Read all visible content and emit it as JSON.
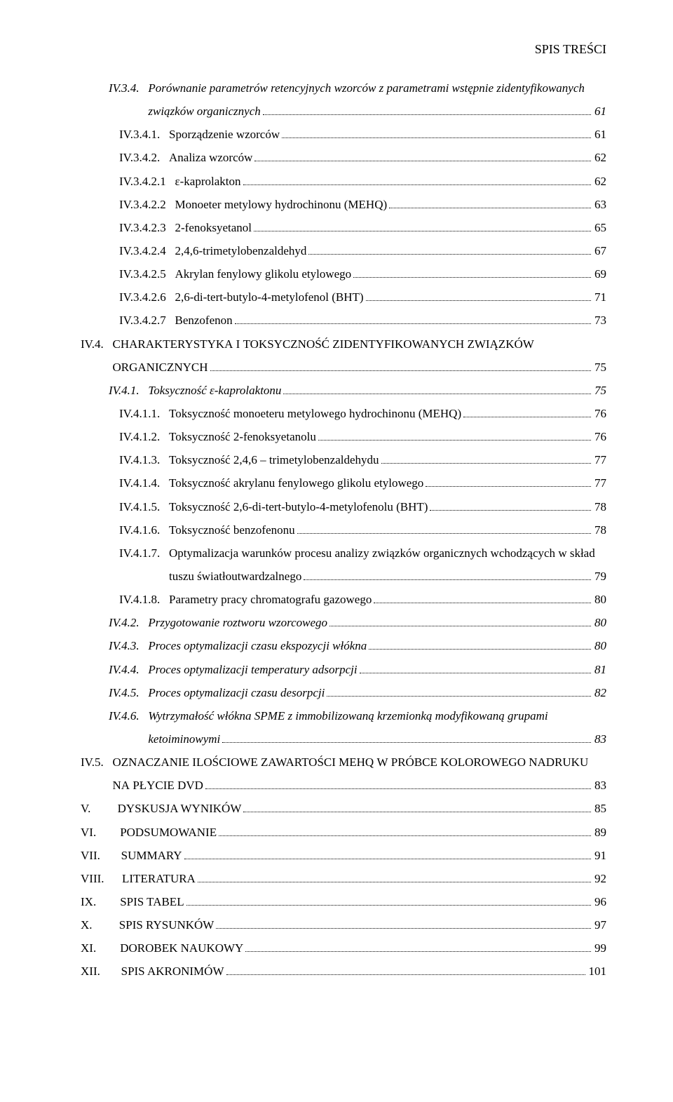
{
  "header": "SPIS TREŚCI",
  "entries": [
    {
      "num": "IV.3.4.",
      "text": "Porównanie parametrów retencyjnych wzorców z parametrami wstępnie zidentyfikowanych związków organicznych",
      "page": "61",
      "indent": "indent-1",
      "italic": true,
      "justify": true,
      "wrap": true
    },
    {
      "num": "IV.3.4.1.",
      "text": "Sporządzenie wzorców",
      "page": "61",
      "indent": "indent-3"
    },
    {
      "num": "IV.3.4.2.",
      "text": "Analiza wzorców",
      "page": "62",
      "indent": "indent-3"
    },
    {
      "num": "IV.3.4.2.1",
      "text": "ε-kaprolakton",
      "page": "62",
      "indent": "indent-4"
    },
    {
      "num": "IV.3.4.2.2",
      "text": "Monoeter metylowy hydrochinonu (MEHQ)",
      "page": "63",
      "indent": "indent-4"
    },
    {
      "num": "IV.3.4.2.3",
      "text": "2-fenoksyetanol",
      "page": "65",
      "indent": "indent-4"
    },
    {
      "num": "IV.3.4.2.4",
      "text": "2,4,6-trimetylobenzaldehyd",
      "page": "67",
      "indent": "indent-4"
    },
    {
      "num": "IV.3.4.2.5",
      "text": "Akrylan fenylowy glikolu etylowego",
      "page": "69",
      "indent": "indent-4"
    },
    {
      "num": "IV.3.4.2.6",
      "text": "2,6-di-tert-butylo-4-metylofenol (BHT)",
      "page": "71",
      "indent": "indent-4"
    },
    {
      "num": "IV.3.4.2.7",
      "text": "Benzofenon",
      "page": "73",
      "indent": "indent-4"
    },
    {
      "num": "IV.4.",
      "text": "CHARAKTERYSTYKA I TOKSYCZNOŚĆ ZIDENTYFIKOWANYCH ZWIĄZKÓW ORGANICZNYCH",
      "page": "75",
      "indent": "indent-top",
      "smallcaps": true,
      "wrap": true
    },
    {
      "num": "IV.4.1.",
      "text": "Toksyczność ε-kaprolaktonu",
      "page": "75",
      "indent": "indent-1",
      "italic": true
    },
    {
      "num": "IV.4.1.1.",
      "text": "Toksyczność monoeteru metylowego hydrochinonu (MEHQ)",
      "page": "76",
      "indent": "indent-3"
    },
    {
      "num": "IV.4.1.2.",
      "text": "Toksyczność 2-fenoksyetanolu",
      "page": "76",
      "indent": "indent-3"
    },
    {
      "num": "IV.4.1.3.",
      "text": "Toksyczność 2,4,6 – trimetylobenzaldehydu",
      "page": "77",
      "indent": "indent-3"
    },
    {
      "num": "IV.4.1.4.",
      "text": "Toksyczność akrylanu fenylowego glikolu etylowego",
      "page": "77",
      "indent": "indent-3"
    },
    {
      "num": "IV.4.1.5.",
      "text": "Toksyczność 2,6-di-tert-butylo-4-metylofenolu (BHT)",
      "page": "78",
      "indent": "indent-3"
    },
    {
      "num": "IV.4.1.6.",
      "text": "Toksyczność benzofenonu",
      "page": "78",
      "indent": "indent-3"
    },
    {
      "num": "IV.4.1.7.",
      "text": "Optymalizacja warunków procesu analizy związków organicznych wchodzących w skład tuszu światłoutwardzalnego",
      "page": "79",
      "indent": "indent-3",
      "wrap": true
    },
    {
      "num": "IV.4.1.8.",
      "text": "Parametry pracy chromatografu gazowego",
      "page": "80",
      "indent": "indent-3"
    },
    {
      "num": "IV.4.2.",
      "text": "Przygotowanie roztworu wzorcowego",
      "page": "80",
      "indent": "indent-1",
      "italic": true
    },
    {
      "num": "IV.4.3.",
      "text": "Proces optymalizacji czasu ekspozycji włókna",
      "page": "80",
      "indent": "indent-1",
      "italic": true
    },
    {
      "num": "IV.4.4.",
      "text": "Proces optymalizacji temperatury adsorpcji",
      "page": "81",
      "indent": "indent-1",
      "italic": true
    },
    {
      "num": "IV.4.5.",
      "text": "Proces optymalizacji czasu desorpcji",
      "page": "82",
      "indent": "indent-1",
      "italic": true
    },
    {
      "num": "IV.4.6.",
      "text": "Wytrzymałość włókna SPME z immobilizowaną krzemionką modyfikowaną grupami ketoiminowymi",
      "page": "83",
      "indent": "indent-1",
      "italic": true,
      "wrap": true,
      "justify": true
    },
    {
      "num": "IV.5.",
      "text": "OZNACZANIE ILOŚCIOWE ZAWARTOŚCI MEHQ W PRÓBCE KOLOROWEGO NADRUKU NA PŁYCIE DVD",
      "page": "83",
      "indent": "indent-top",
      "smallcaps": true,
      "wrap": true,
      "justify": true
    },
    {
      "num": "V.",
      "text": "DYSKUSJA WYNIKÓW",
      "page": "85",
      "indent": "indent-top",
      "numpad": true
    },
    {
      "num": "VI.",
      "text": "PODSUMOWANIE",
      "page": "89",
      "indent": "indent-top",
      "numpad": true
    },
    {
      "num": "VII.",
      "text": "SUMMARY",
      "page": "91",
      "indent": "indent-top",
      "numpad": true
    },
    {
      "num": "VIII.",
      "text": "LITERATURA",
      "page": "92",
      "indent": "indent-top",
      "numpad": true
    },
    {
      "num": "IX.",
      "text": "SPIS TABEL",
      "page": "96",
      "indent": "indent-top",
      "numpad": true
    },
    {
      "num": "X.",
      "text": "SPIS RYSUNKÓW",
      "page": "97",
      "indent": "indent-top",
      "numpad": true
    },
    {
      "num": "XI.",
      "text": "DOROBEK NAUKOWY",
      "page": "99",
      "indent": "indent-top",
      "numpad": true
    },
    {
      "num": "XII.",
      "text": "SPIS AKRONIMÓW",
      "page": "101",
      "indent": "indent-top",
      "numpad": true
    }
  ]
}
